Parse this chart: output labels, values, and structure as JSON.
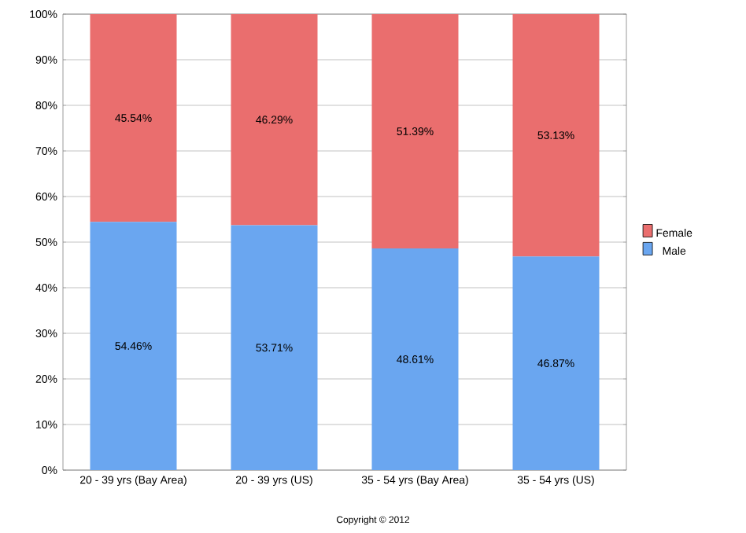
{
  "chart_data": {
    "type": "bar",
    "stacked": true,
    "categories": [
      "20 - 39 yrs (Bay Area)",
      "20 - 39 yrs (US)",
      "35 - 54 yrs (Bay Area)",
      "35 - 54 yrs (US)"
    ],
    "series": [
      {
        "name": "Male",
        "color": "#6aa6f0",
        "values": [
          54.46,
          53.71,
          48.61,
          46.87
        ],
        "value_labels": [
          "54.46%",
          "53.71%",
          "48.61%",
          "46.87%"
        ]
      },
      {
        "name": "Female",
        "color": "#ea6e6e",
        "values": [
          45.54,
          46.29,
          51.39,
          53.13
        ],
        "value_labels": [
          "45.54%",
          "46.29%",
          "51.39%",
          "53.13%"
        ]
      }
    ],
    "ylim": [
      0,
      100
    ],
    "yticks": [
      {
        "value": 0,
        "label": "0%"
      },
      {
        "value": 10,
        "label": "10%"
      },
      {
        "value": 20,
        "label": "20%"
      },
      {
        "value": 30,
        "label": "30%"
      },
      {
        "value": 40,
        "label": "40%"
      },
      {
        "value": 50,
        "label": "50%"
      },
      {
        "value": 60,
        "label": "60%"
      },
      {
        "value": 70,
        "label": "70%"
      },
      {
        "value": 80,
        "label": "80%"
      },
      {
        "value": 90,
        "label": "90%"
      },
      {
        "value": 100,
        "label": "100%"
      }
    ],
    "grid": "y",
    "legend": "right",
    "annotations": [
      "Copyright © 2012"
    ]
  }
}
